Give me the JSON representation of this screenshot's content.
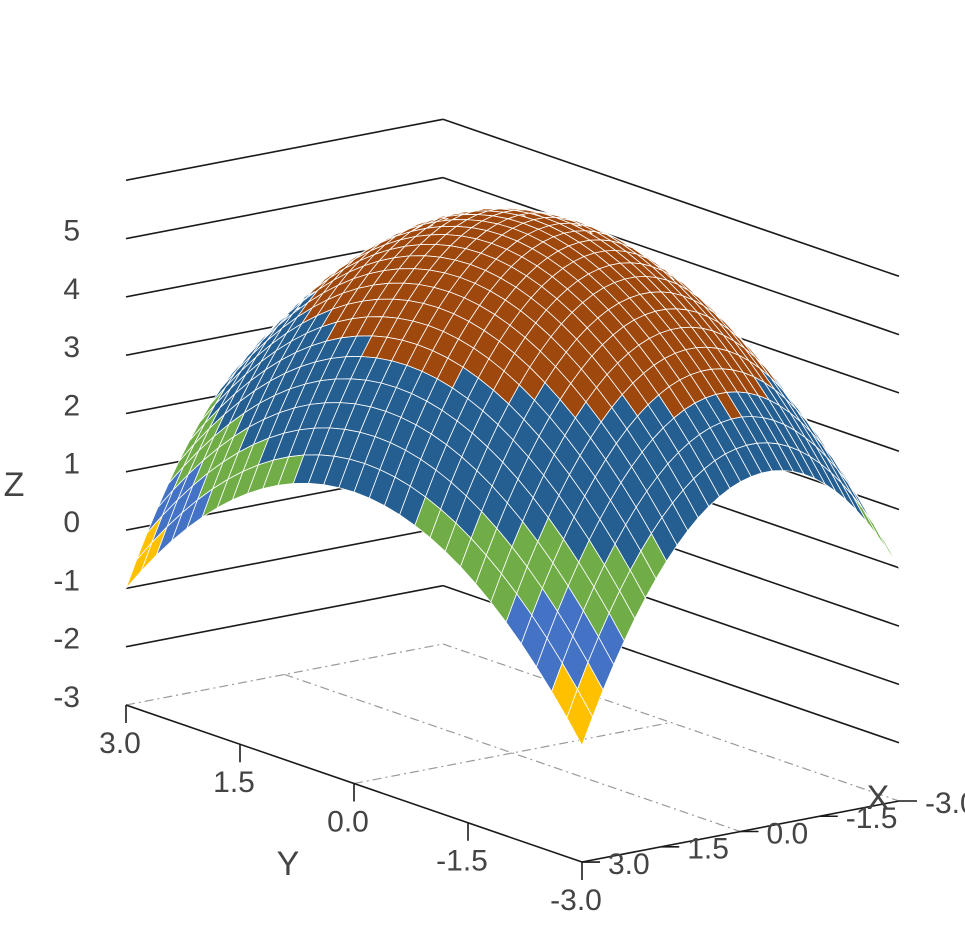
{
  "chart_data": {
    "type": "surface",
    "function": "z = 6 - (x^2 + y^2)/3 - x/3",
    "x": {
      "label": "X",
      "ticks": [
        "-3.0",
        "-1.5",
        "0.0",
        "1.5",
        "3.0"
      ],
      "range": [
        -3,
        3
      ]
    },
    "y": {
      "label": "Y",
      "ticks": [
        "-3.0",
        "-1.5",
        "0.0",
        "1.5",
        "3.0"
      ],
      "range": [
        -3,
        3
      ]
    },
    "z": {
      "label": "Z",
      "ticks": [
        "-3",
        "-2",
        "-1",
        "0",
        "1",
        "2",
        "3",
        "4",
        "5"
      ],
      "range": [
        -3,
        6
      ]
    },
    "grid": true,
    "color_bands": [
      {
        "from": -3,
        "to": -2,
        "color": "#ED7D31"
      },
      {
        "from": -2,
        "to": -1,
        "color": "#A5A5A5"
      },
      {
        "from": -1,
        "to": 0,
        "color": "#FFC000"
      },
      {
        "from": 0,
        "to": 1,
        "color": "#4472C4"
      },
      {
        "from": 1,
        "to": 2,
        "color": "#70AD47"
      },
      {
        "from": 2,
        "to": 4,
        "color": "#255E91"
      },
      {
        "from": 4,
        "to": 6,
        "color": "#9E480E"
      }
    ],
    "mesh_color": "#ffffff"
  }
}
